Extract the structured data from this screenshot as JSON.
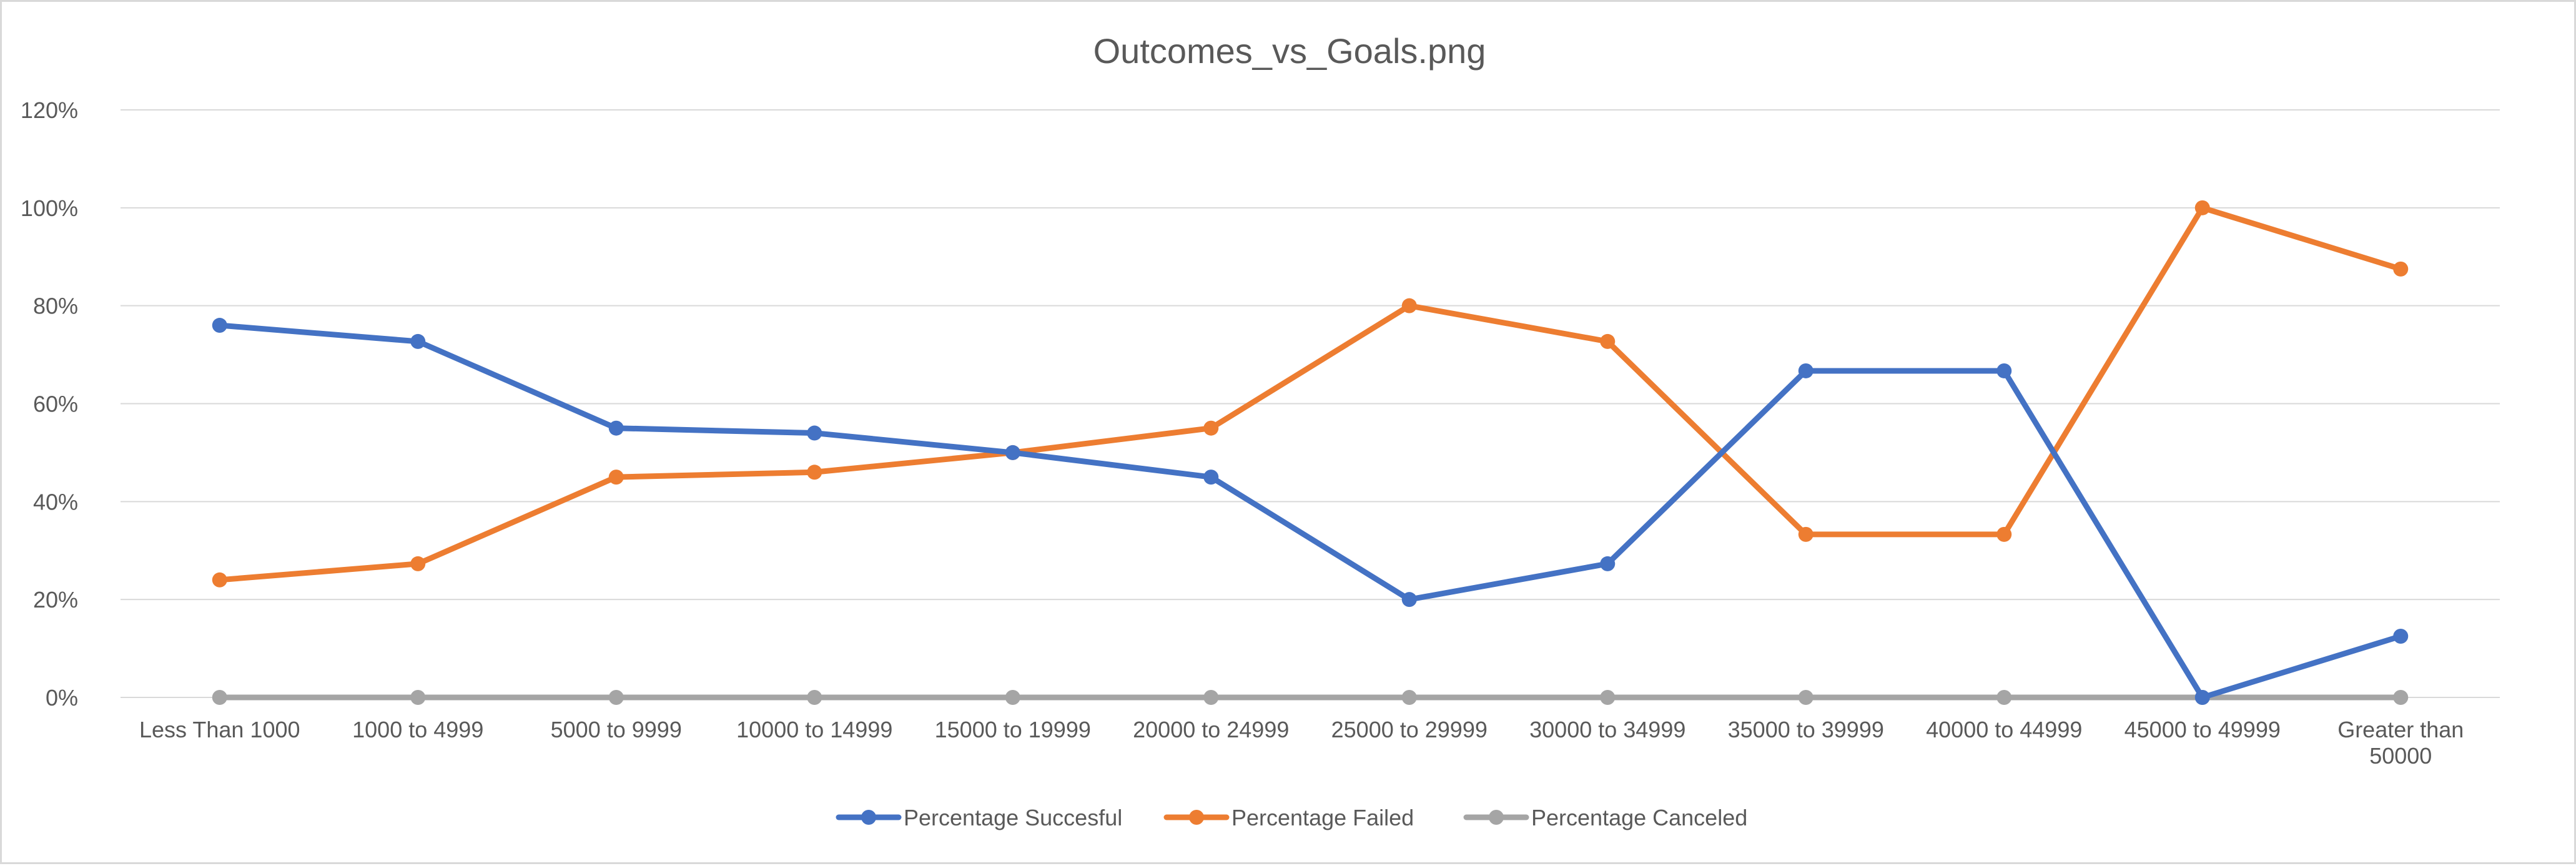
{
  "chart_data": {
    "type": "line",
    "title": "Outcomes_vs_Goals.png",
    "xlabel": "",
    "ylabel": "",
    "categories": [
      "Less Than 1000",
      "1000 to 4999",
      "5000 to 9999",
      "10000 to 14999",
      "15000 to 19999",
      "20000 to 24999",
      "25000 to 29999",
      "30000 to 34999",
      "35000 to 39999",
      "40000 to 44999",
      "45000 to 49999",
      "Greater than 50000"
    ],
    "ylim": [
      0,
      120
    ],
    "yticks": [
      0,
      20,
      40,
      60,
      80,
      100,
      120
    ],
    "ytick_labels": [
      "0%",
      "20%",
      "40%",
      "60%",
      "80%",
      "100%",
      "120%"
    ],
    "grid": true,
    "legend_position": "bottom",
    "series": [
      {
        "name": "Percentage Succesful",
        "color": "#4472c4",
        "values": [
          76,
          72.7,
          55,
          54,
          50,
          45,
          20,
          27.3,
          66.7,
          66.7,
          0,
          12.5
        ]
      },
      {
        "name": "Percentage Failed",
        "color": "#ed7d31",
        "values": [
          24,
          27.3,
          45,
          46,
          50,
          55,
          80,
          72.7,
          33.3,
          33.3,
          100,
          87.5
        ]
      },
      {
        "name": "Percentage Canceled",
        "color": "#a5a5a5",
        "values": [
          0,
          0,
          0,
          0,
          0,
          0,
          0,
          0,
          0,
          0,
          0,
          0
        ]
      }
    ]
  }
}
